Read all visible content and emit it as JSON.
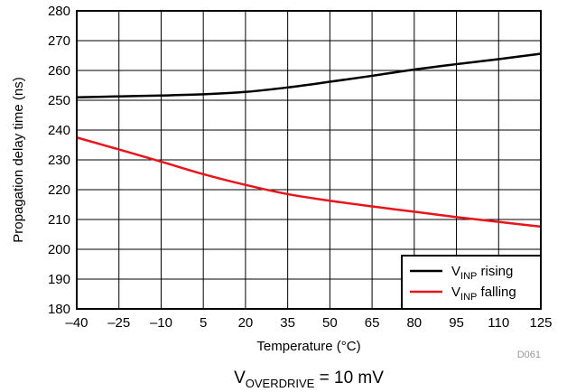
{
  "chart_data": {
    "type": "line",
    "xlabel": "Temperature (°C)",
    "ylabel": "Propagation delay time (ns)",
    "xlim": [
      -40,
      125
    ],
    "ylim": [
      180,
      280
    ],
    "x_ticks": [
      -40,
      -25,
      -10,
      5,
      20,
      35,
      50,
      65,
      80,
      95,
      110,
      125
    ],
    "y_ticks": [
      180,
      190,
      200,
      210,
      220,
      230,
      240,
      250,
      260,
      270,
      280
    ],
    "grid": true,
    "legend_position": "bottom-right",
    "series": [
      {
        "name_main": "V",
        "name_sub": "INP",
        "name_rest": " rising",
        "color": "#000000",
        "x": [
          -40,
          -25,
          -10,
          5,
          20,
          35,
          50,
          65,
          80,
          95,
          110,
          125
        ],
        "y": [
          251,
          251.3,
          251.6,
          252,
          252.8,
          254.3,
          256.2,
          258.2,
          260.3,
          262.1,
          263.8,
          265.6
        ]
      },
      {
        "name_main": "V",
        "name_sub": "INP",
        "name_rest": " falling",
        "color": "#e8141c",
        "x": [
          -40,
          -25,
          -10,
          5,
          20,
          35,
          50,
          65,
          80,
          95,
          110,
          125
        ],
        "y": [
          237.5,
          233.5,
          229.4,
          225.2,
          221.6,
          218.5,
          216.3,
          214.4,
          212.6,
          210.8,
          209.2,
          207.6
        ]
      }
    ],
    "figure_code": "D061",
    "caption_main": "V",
    "caption_sub": "OVERDRIVE",
    "caption_rest": " = 10 mV"
  }
}
